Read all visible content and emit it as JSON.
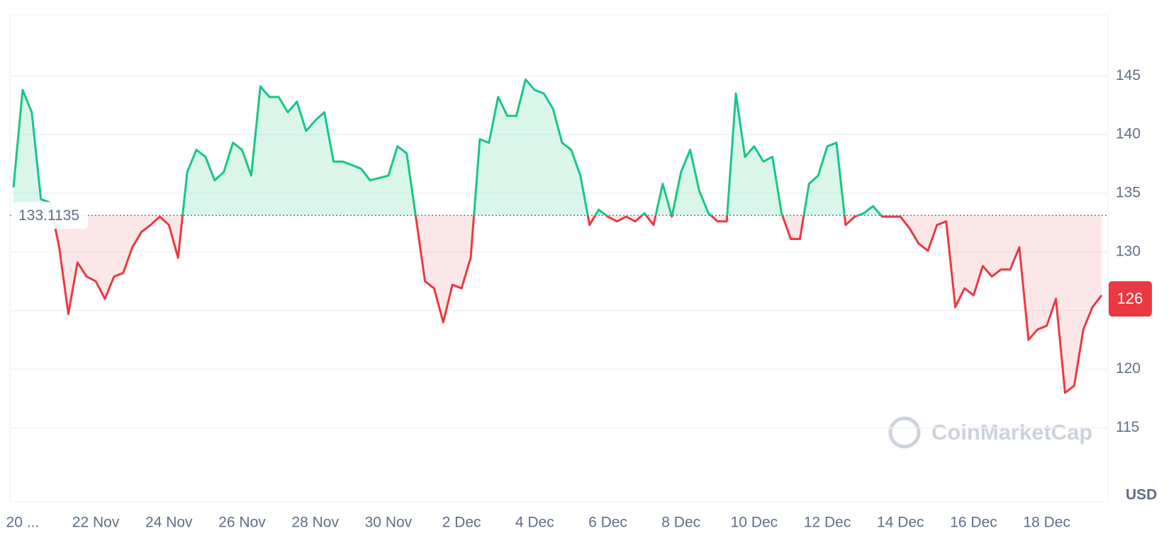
{
  "chart_data": {
    "type": "line",
    "categories": [
      null,
      "20 ...",
      null,
      null,
      null,
      null,
      null,
      null,
      null,
      "22 Nov",
      null,
      null,
      null,
      null,
      null,
      null,
      null,
      "24 Nov",
      null,
      null,
      null,
      null,
      null,
      null,
      null,
      "26 Nov",
      null,
      null,
      null,
      null,
      null,
      null,
      null,
      "28 Nov",
      null,
      null,
      null,
      null,
      null,
      null,
      null,
      "30 Nov",
      null,
      null,
      null,
      null,
      null,
      null,
      null,
      "2 Dec",
      null,
      null,
      null,
      null,
      null,
      null,
      null,
      "4 Dec",
      null,
      null,
      null,
      null,
      null,
      null,
      null,
      "6 Dec",
      null,
      null,
      null,
      null,
      null,
      null,
      null,
      "8 Dec",
      null,
      null,
      null,
      null,
      null,
      null,
      null,
      "10 Dec",
      null,
      null,
      null,
      null,
      null,
      null,
      null,
      "12 Dec",
      null,
      null,
      null,
      null,
      null,
      null,
      null,
      "14 Dec",
      null,
      null,
      null,
      null,
      null,
      null,
      null,
      "16 Dec",
      null,
      null,
      null,
      null,
      null,
      null,
      null,
      "18 Dec",
      null,
      null,
      null,
      null,
      null,
      null
    ],
    "values": [
      135.5,
      143.8,
      141.9,
      134.5,
      134.2,
      130.4,
      124.7,
      129.1,
      127.9,
      127.5,
      126,
      127.9,
      128.2,
      130.4,
      131.7,
      132.3,
      133,
      132.3,
      129.5,
      136.8,
      138.7,
      138.1,
      136.1,
      136.8,
      139.3,
      138.7,
      136.5,
      144.1,
      143.2,
      143.2,
      141.9,
      142.8,
      140.3,
      141.2,
      141.9,
      137.7,
      137.7,
      137.4,
      137.1,
      136.1,
      136.3,
      136.5,
      139,
      138.4,
      133,
      127.5,
      126.9,
      124,
      127.2,
      126.9,
      129.5,
      139.6,
      139.3,
      143.2,
      141.6,
      141.6,
      144.7,
      143.8,
      143.5,
      142.2,
      139.3,
      138.7,
      136.5,
      132.3,
      133.6,
      133,
      132.6,
      133,
      132.6,
      133.3,
      132.3,
      135.8,
      133,
      136.8,
      138.7,
      135.2,
      133.3,
      132.6,
      132.6,
      143.5,
      138.1,
      139,
      137.7,
      138.1,
      133.3,
      131.1,
      131.1,
      135.8,
      136.5,
      139,
      139.3,
      132.3,
      133,
      133.3,
      133.9,
      133,
      133,
      133,
      132,
      130.7,
      130.1,
      132.3,
      132.6,
      125.3,
      126.9,
      126.3,
      128.8,
      127.9,
      128.5,
      128.5,
      130.4,
      122.5,
      123.4,
      123.7,
      126,
      118,
      118.6,
      123.4,
      125.3,
      126.3
    ],
    "baseline": 133.1135,
    "price_tag": 126,
    "up_color": "#16c784",
    "down_color": "#ea3943",
    "ylim": [
      108.7,
      150.2
    ],
    "yticks": [
      115,
      120,
      125,
      130,
      135,
      140,
      145
    ],
    "grid": true,
    "y_unit": "USD",
    "watermark": "CoinMarketCap"
  }
}
